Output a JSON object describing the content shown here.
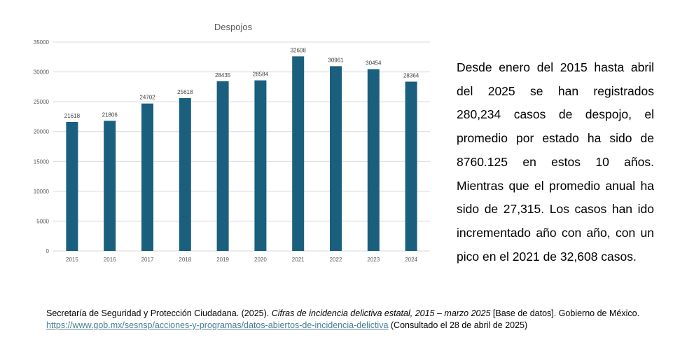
{
  "chart_data": {
    "type": "bar",
    "title": "Despojos",
    "categories": [
      "2015",
      "2016",
      "2017",
      "2018",
      "2019",
      "2020",
      "2021",
      "2022",
      "2023",
      "2024"
    ],
    "values": [
      21618,
      21806,
      24702,
      25618,
      28435,
      28584,
      32608,
      30961,
      30454,
      28364
    ],
    "ylim": [
      0,
      35000
    ],
    "yticks": [
      "0",
      "5000",
      "10000",
      "15000",
      "20000",
      "25000",
      "30000",
      "35000"
    ],
    "grid": true,
    "legend": "none",
    "bar_color": "#1a5f7e"
  },
  "summary": {
    "text": "Desde enero del 2015 hasta abril del 2025 se han registrados 280,234 casos de despojo, el promedio por estado ha sido de 8760.125 en estos 10 años. Mientras que el promedio anual ha sido de 27,315. Los casos han ido incrementado año con año, con un pico en el 2021 de 32,608 casos."
  },
  "citation": {
    "part1": "Secretaría de Seguridad y Protección Ciudadana. (2025). ",
    "title_italic": "Cifras de incidencia delictiva estatal, 2015 – marzo 2025",
    "part2": " [Base de datos]. Gobierno de México. ",
    "link_text": "https://www.gob.mx/sesnsp/acciones-y-programas/datos-abiertos-de-incidencia-delictiva",
    "part3": " (Consultado el 28 de abril de 2025)"
  }
}
